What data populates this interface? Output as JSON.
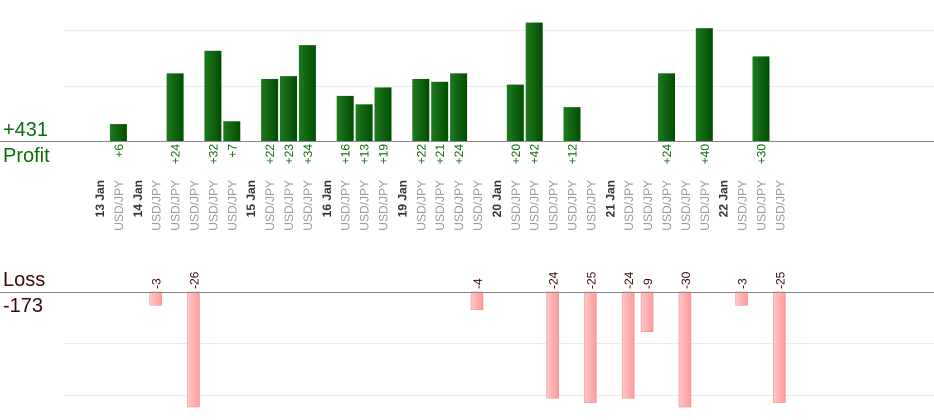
{
  "profit_panel": {
    "total": "+431",
    "label": "Profit"
  },
  "loss_panel": {
    "label": "Loss",
    "total": "-173"
  },
  "colors": {
    "profit_bar_light": "#1f7a1f",
    "profit_bar_dark": "#004d00",
    "profit_text": "#0d6b0d",
    "loss_bar_light": "#ffc8c8",
    "loss_bar_dark": "#ff9a9a",
    "loss_text": "#3a0a0a",
    "pair_text": "#9a9a9a",
    "date_text": "#333333",
    "axis": "#8a8a8a",
    "grid": "#ececec"
  },
  "chart_data": {
    "type": "bar",
    "grid": true,
    "profit_scale_max": 50,
    "loss_scale_max": 26,
    "categories": [
      {
        "date": "13 Jan"
      },
      {
        "pair": "USD/JPY",
        "profit": 6
      },
      {
        "date": "14 Jan"
      },
      {
        "pair": "USD/JPY",
        "loss": -3
      },
      {
        "pair": "USD/JPY",
        "profit": 24
      },
      {
        "pair": "USD/JPY",
        "loss": -26
      },
      {
        "pair": "USD/JPY",
        "profit": 32
      },
      {
        "pair": "USD/JPY",
        "profit": 7
      },
      {
        "date": "15 Jan"
      },
      {
        "pair": "USD/JPY",
        "profit": 22
      },
      {
        "pair": "USD/JPY",
        "profit": 23
      },
      {
        "pair": "USD/JPY",
        "profit": 34
      },
      {
        "date": "16 Jan"
      },
      {
        "pair": "USD/JPY",
        "profit": 16
      },
      {
        "pair": "USD/JPY",
        "profit": 13
      },
      {
        "pair": "USD/JPY",
        "profit": 19
      },
      {
        "date": "19 Jan"
      },
      {
        "pair": "USD/JPY",
        "profit": 22
      },
      {
        "pair": "USD/JPY",
        "profit": 21
      },
      {
        "pair": "USD/JPY",
        "profit": 24
      },
      {
        "pair": "USD/JPY",
        "loss": -4
      },
      {
        "date": "20 Jan"
      },
      {
        "pair": "USD/JPY",
        "profit": 20
      },
      {
        "pair": "USD/JPY",
        "profit": 42
      },
      {
        "pair": "USD/JPY",
        "loss": -24
      },
      {
        "pair": "USD/JPY",
        "profit": 12
      },
      {
        "pair": "USD/JPY",
        "loss": -25
      },
      {
        "date": "21 Jan"
      },
      {
        "pair": "USD/JPY",
        "loss": -24
      },
      {
        "pair": "USD/JPY",
        "loss": -9
      },
      {
        "pair": "USD/JPY",
        "profit": 24
      },
      {
        "pair": "USD/JPY",
        "loss": -30
      },
      {
        "pair": "USD/JPY",
        "profit": 40
      },
      {
        "date": "22 Jan"
      },
      {
        "pair": "USD/JPY",
        "loss": -3
      },
      {
        "pair": "USD/JPY",
        "profit": 30
      },
      {
        "pair": "USD/JPY",
        "loss": -25
      }
    ]
  }
}
